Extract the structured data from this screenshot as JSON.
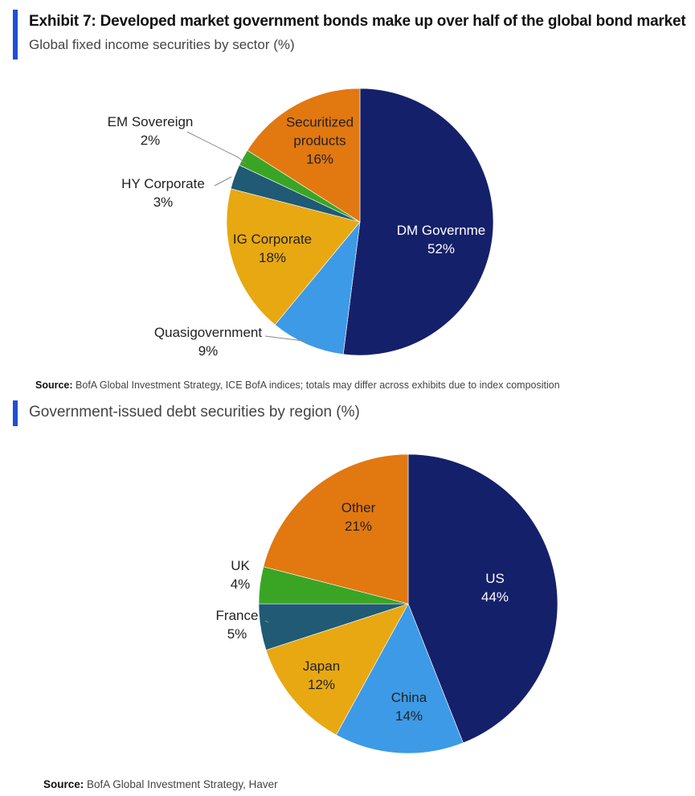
{
  "title": "Exhibit 7: Developed market government bonds make up over half of the global bond market",
  "source_label": "Source:",
  "colors": {
    "accent": "#1f4fd6",
    "navy": "#15206a",
    "light_blue": "#3d9ae6",
    "gold": "#e8a812",
    "teal": "#205a75",
    "green": "#3aa524",
    "orange": "#e27810"
  },
  "chart_data": [
    {
      "type": "pie",
      "title": "Global fixed income securities by sector (%)",
      "source": "BofA Global Investment Strategy, ICE BofA indices; totals may differ across exhibits due to index composition",
      "start": "12 o'clock, clockwise",
      "slices": [
        {
          "label": "DM Government",
          "label_text": "DM Governme",
          "value": 52,
          "pct_text": "52%",
          "color": "#15206a",
          "text_color": "#ffffff"
        },
        {
          "label": "Quasi-government",
          "label_text": "Quasigovernment",
          "value": 9,
          "pct_text": "9%",
          "color": "#3d9ae6",
          "text_color": "#222222"
        },
        {
          "label": "IG Corporate",
          "label_text": "IG Corporate",
          "value": 18,
          "pct_text": "18%",
          "color": "#e8a812",
          "text_color": "#222222"
        },
        {
          "label": "HY Corporate",
          "label_text": "HY Corporate",
          "value": 3,
          "pct_text": "3%",
          "color": "#205a75",
          "text_color": "#222222"
        },
        {
          "label": "EM Sovereign",
          "label_text": "EM Sovereign",
          "value": 2,
          "pct_text": "2%",
          "color": "#3aa524",
          "text_color": "#222222"
        },
        {
          "label": "Securitized products",
          "label_lines": [
            "Securitized",
            "products"
          ],
          "value": 16,
          "pct_text": "16%",
          "color": "#e27810",
          "text_color": "#222222"
        }
      ]
    },
    {
      "type": "pie",
      "title": "Government-issued debt securities by region (%)",
      "source": "BofA Global Investment Strategy, Haver",
      "start": "12 o'clock, clockwise",
      "slices": [
        {
          "label": "US",
          "value": 44,
          "pct_text": "44%",
          "color": "#15206a",
          "text_color": "#ffffff"
        },
        {
          "label": "China",
          "value": 14,
          "pct_text": "14%",
          "color": "#3d9ae6",
          "text_color": "#222222"
        },
        {
          "label": "Japan",
          "value": 12,
          "pct_text": "12%",
          "color": "#e8a812",
          "text_color": "#222222"
        },
        {
          "label": "France",
          "value": 5,
          "pct_text": "5%",
          "color": "#205a75",
          "text_color": "#222222"
        },
        {
          "label": "UK",
          "value": 4,
          "pct_text": "4%",
          "color": "#3aa524",
          "text_color": "#222222"
        },
        {
          "label": "Other",
          "value": 21,
          "pct_text": "21%",
          "color": "#e27810",
          "text_color": "#222222"
        }
      ]
    }
  ]
}
